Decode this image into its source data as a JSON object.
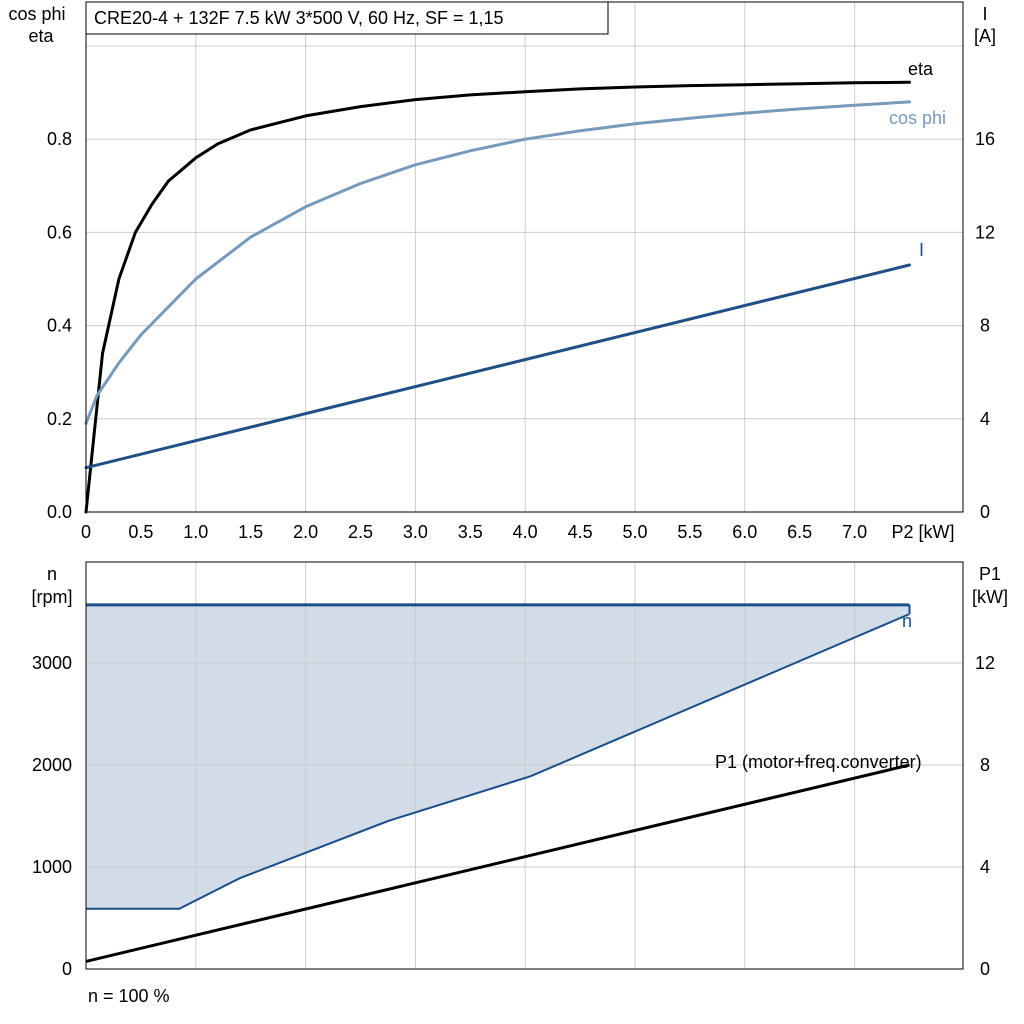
{
  "title": "CRE20-4 + 132F   7.5 kW   3*500 V, 60 Hz, SF = 1,15",
  "footer_note": "n = 100 %",
  "colors": {
    "eta": "#000000",
    "cos_phi": "#7799bb",
    "current": "#1f4f86",
    "speed": "#1a4e8a",
    "speed_fill": "#d1dce8",
    "p1": "#000000",
    "grid": "#cccccc"
  },
  "chart_data": [
    {
      "type": "line",
      "name": "motor-efficiency-chart",
      "xlabel": "P2 [kW]",
      "x_tick_labels": [
        "0",
        "0.5",
        "1.0",
        "1.5",
        "2.0",
        "2.5",
        "3.0",
        "3.5",
        "4.0",
        "4.5",
        "5.0",
        "5.5",
        "6.0",
        "6.5",
        "7.0",
        "P2 [kW]"
      ],
      "x_range": [
        0,
        8
      ],
      "y_left_label": [
        "cos phi",
        "eta"
      ],
      "y_left_range": [
        0,
        1.0
      ],
      "y_left_ticks": [
        "0.0",
        "0.2",
        "0.4",
        "0.6",
        "0.8"
      ],
      "y_right_label": [
        "I",
        "[A]"
      ],
      "y_right_range": [
        0,
        20
      ],
      "y_right_ticks": [
        "0",
        "4",
        "8",
        "12",
        "16"
      ],
      "grid": true,
      "series": [
        {
          "name": "eta",
          "axis": "left",
          "x": [
            0,
            0.15,
            0.3,
            0.45,
            0.6,
            0.75,
            0.9,
            1.0,
            1.2,
            1.5,
            2.0,
            2.5,
            3.0,
            3.5,
            4.0,
            4.5,
            5.0,
            5.5,
            6.0,
            6.5,
            7.0,
            7.5
          ],
          "y": [
            0,
            0.34,
            0.5,
            0.6,
            0.66,
            0.71,
            0.74,
            0.76,
            0.79,
            0.82,
            0.85,
            0.87,
            0.885,
            0.895,
            0.902,
            0.908,
            0.912,
            0.915,
            0.917,
            0.919,
            0.921,
            0.922
          ]
        },
        {
          "name": "cos phi",
          "axis": "left",
          "x": [
            0,
            0.1,
            0.3,
            0.5,
            0.75,
            1.0,
            1.5,
            2.0,
            2.5,
            3.0,
            3.5,
            4.0,
            4.5,
            5.0,
            5.5,
            6.0,
            6.5,
            7.0,
            7.5
          ],
          "y": [
            0.19,
            0.25,
            0.32,
            0.38,
            0.44,
            0.5,
            0.59,
            0.655,
            0.705,
            0.745,
            0.775,
            0.8,
            0.818,
            0.833,
            0.845,
            0.856,
            0.865,
            0.873,
            0.88
          ]
        },
        {
          "name": "I",
          "axis": "right",
          "x": [
            0,
            7.5
          ],
          "y": [
            1.9,
            10.6
          ]
        }
      ]
    },
    {
      "type": "area",
      "name": "speed-power-chart",
      "x_range": [
        0,
        8
      ],
      "y_left_label": [
        "n",
        "[rpm]"
      ],
      "y_left_range": [
        0,
        4000
      ],
      "y_left_ticks": [
        "0",
        "1000",
        "2000",
        "3000"
      ],
      "y_right_label": [
        "P1",
        "[kW]"
      ],
      "y_right_range": [
        0,
        16
      ],
      "y_right_ticks": [
        "0",
        "4",
        "8",
        "12"
      ],
      "grid": true,
      "series": [
        {
          "name": "n",
          "axis": "left",
          "note": "upper limit (n = 100 %) and lower operating limit enclosing the shaded range",
          "upper_x": [
            0,
            7.5
          ],
          "upper_y": [
            3570,
            3570
          ],
          "lower_x": [
            0,
            0.85,
            1.4,
            2.75,
            4.05,
            7.5
          ],
          "lower_y": [
            590,
            590,
            890,
            1450,
            1890,
            3480
          ]
        },
        {
          "name": "P1 (motor+freq.converter)",
          "axis": "right",
          "x": [
            0,
            7.5
          ],
          "y": [
            0.3,
            8.0
          ]
        }
      ]
    }
  ]
}
